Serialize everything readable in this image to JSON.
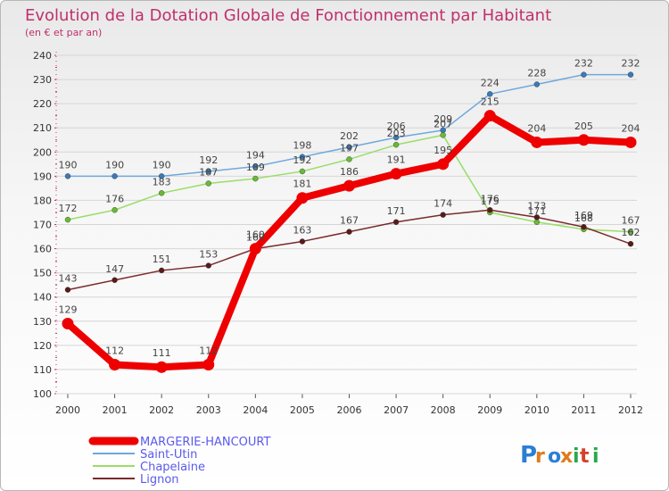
{
  "chart_data": {
    "type": "line",
    "title": "Evolution de la Dotation Globale de Fonctionnement par Habitant",
    "subtitle": "(en € et par an)",
    "xlabel": "",
    "ylabel": "",
    "ylim": [
      100,
      240
    ],
    "yticks": [
      100,
      110,
      120,
      130,
      140,
      150,
      160,
      170,
      180,
      190,
      200,
      210,
      220,
      230,
      240
    ],
    "categories": [
      "2000",
      "2001",
      "2002",
      "2003",
      "2004",
      "2005",
      "2006",
      "2007",
      "2008",
      "2009",
      "2010",
      "2011",
      "2012"
    ],
    "grid": "horizontal",
    "legend_position": "bottom-left",
    "series": [
      {
        "name": "Saint-Utin",
        "color": "#6fa8dc",
        "marker": "#3a7ab8",
        "values": [
          190,
          190,
          190,
          192,
          194,
          198,
          202,
          206,
          209,
          224,
          228,
          232,
          232
        ]
      },
      {
        "name": "Chapelaine",
        "color": "#99dd66",
        "marker": "#66bb33",
        "values": [
          172,
          176,
          183,
          187,
          189,
          192,
          197,
          203,
          207,
          175,
          171,
          168,
          167
        ]
      },
      {
        "name": "Lignon",
        "color": "#7a2a2a",
        "marker": "#5a1a1a",
        "values": [
          143,
          147,
          151,
          153,
          160,
          163,
          167,
          171,
          174,
          176,
          173,
          169,
          162
        ]
      },
      {
        "name": "MARGERIE-HANCOURT",
        "color": "#ee0000",
        "marker": "#ee0000",
        "values": [
          129,
          112,
          111,
          112,
          160,
          181,
          186,
          191,
          195,
          215,
          204,
          205,
          204
        ]
      }
    ]
  },
  "legend_order": [
    3,
    0,
    1,
    2
  ],
  "legend_colors": {
    "MARGERIE-HANCOURT": "#5a5aee",
    "others": "#5a5aee"
  },
  "logo": {
    "text": "Proxiti",
    "letters": [
      "P",
      "r",
      "o",
      "x",
      "i",
      "t",
      "i"
    ],
    "colors": [
      "#2a7fd4",
      "#e07a1a",
      "#2a7fd4",
      "#e07a1a",
      "#2aa84a",
      "#d4402a",
      "#2aa84a"
    ]
  }
}
